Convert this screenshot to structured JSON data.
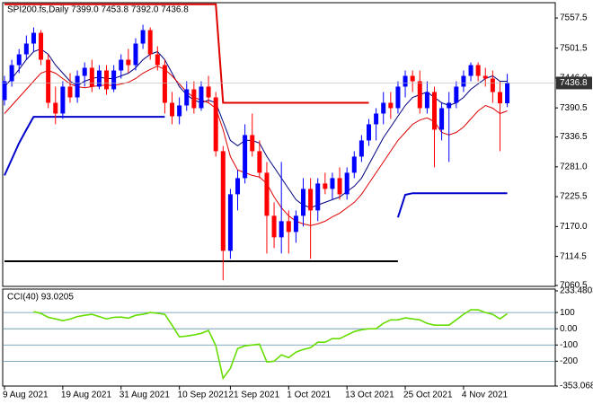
{
  "chart_data": [
    {
      "type": "candlestick",
      "title": "SPI200.fs,Daily  7399.0 7453.8 7392.0 7436.8",
      "categories": [
        "9 Aug 2021",
        null,
        null,
        null,
        null,
        null,
        null,
        null,
        "19 Aug 2021",
        null,
        null,
        null,
        null,
        null,
        null,
        null,
        "31 Aug 2021",
        null,
        null,
        null,
        null,
        null,
        null,
        null,
        "10 Sep 2021",
        null,
        null,
        null,
        null,
        null,
        null,
        "21 Sep 2021",
        null,
        null,
        null,
        null,
        null,
        null,
        null,
        "1 Oct 2021",
        null,
        null,
        null,
        null,
        null,
        null,
        null,
        "13 Oct 2021",
        null,
        null,
        null,
        null,
        null,
        null,
        null,
        "25 Oct 2021",
        null,
        null,
        null,
        null,
        null,
        null,
        null,
        "4 Nov 2021",
        null,
        null,
        null,
        null,
        null,
        null
      ],
      "open": [
        7405,
        7440,
        7470,
        7490,
        7510,
        7530,
        7480,
        7400,
        7380,
        7430,
        7410,
        7450,
        7465,
        7430,
        7460,
        7425,
        7460,
        7480,
        7470,
        7510,
        7535,
        7490,
        7470,
        7400,
        7375,
        7395,
        7425,
        7390,
        7430,
        7410,
        7310,
        7125,
        7230,
        7260,
        7340,
        7310,
        7270,
        7190,
        7150,
        7180,
        7160,
        7190,
        7240,
        7200,
        7250,
        7240,
        7260,
        7230,
        7270,
        7300,
        7330,
        7360,
        7380,
        7400,
        7390,
        7430,
        7450,
        7440,
        7390,
        7420,
        7350,
        7390,
        7400,
        7430,
        7450,
        7470,
        7450,
        7445,
        7420,
        7399
      ],
      "high": [
        7450,
        7480,
        7500,
        7525,
        7540,
        7535,
        7490,
        7430,
        7440,
        7455,
        7460,
        7475,
        7480,
        7470,
        7470,
        7470,
        7490,
        7500,
        7520,
        7545,
        7540,
        7505,
        7480,
        7420,
        7410,
        7440,
        7440,
        7440,
        7450,
        7420,
        7320,
        7240,
        7275,
        7360,
        7380,
        7330,
        7290,
        7215,
        7290,
        7200,
        7200,
        7260,
        7260,
        7260,
        7270,
        7270,
        7280,
        7280,
        7310,
        7340,
        7370,
        7390,
        7420,
        7420,
        7440,
        7460,
        7460,
        7460,
        7440,
        7430,
        7400,
        7420,
        7440,
        7460,
        7475,
        7475,
        7465,
        7460,
        7440,
        7453.8
      ],
      "low": [
        7395,
        7430,
        7455,
        7480,
        7495,
        7470,
        7390,
        7360,
        7370,
        7400,
        7400,
        7430,
        7420,
        7425,
        7415,
        7420,
        7445,
        7455,
        7460,
        7500,
        7480,
        7460,
        7380,
        7360,
        7360,
        7385,
        7380,
        7385,
        7400,
        7300,
        7070,
        7110,
        7200,
        7250,
        7300,
        7260,
        7120,
        7130,
        7120,
        7120,
        7140,
        7170,
        7110,
        7180,
        7230,
        7220,
        7220,
        7220,
        7260,
        7290,
        7320,
        7330,
        7360,
        7370,
        7380,
        7410,
        7420,
        7380,
        7380,
        7280,
        7330,
        7290,
        7390,
        7420,
        7440,
        7440,
        7430,
        7400,
        7310,
        7392
      ],
      "close": [
        7440,
        7470,
        7490,
        7510,
        7530,
        7480,
        7400,
        7380,
        7430,
        7410,
        7450,
        7465,
        7430,
        7460,
        7425,
        7460,
        7480,
        7470,
        7510,
        7535,
        7490,
        7470,
        7400,
        7375,
        7395,
        7425,
        7390,
        7430,
        7410,
        7310,
        7125,
        7230,
        7260,
        7340,
        7310,
        7270,
        7190,
        7150,
        7180,
        7160,
        7190,
        7240,
        7200,
        7250,
        7240,
        7260,
        7230,
        7270,
        7300,
        7330,
        7360,
        7380,
        7400,
        7390,
        7430,
        7450,
        7440,
        7390,
        7420,
        7350,
        7390,
        7400,
        7430,
        7450,
        7470,
        7450,
        7445,
        7420,
        7399,
        7436.8
      ],
      "up_color": "#0000ff",
      "down_color": "#ff0000",
      "overlays": [
        {
          "color": "#000080",
          "values": [
            7430,
            7445,
            7462,
            7480,
            7495,
            7500,
            7490,
            7470,
            7455,
            7440,
            7432,
            7440,
            7445,
            7448,
            7445,
            7445,
            7450,
            7455,
            7465,
            7480,
            7490,
            7495,
            7480,
            7455,
            7430,
            7415,
            7405,
            7400,
            7405,
            7400,
            7365,
            7330,
            7320,
            7330,
            7330,
            7325,
            7300,
            7280,
            7260,
            7240,
            7220,
            7210,
            7205,
            7210,
            7215,
            7220,
            7225,
            7235,
            7245,
            7260,
            7285,
            7310,
            7335,
            7355,
            7375,
            7395,
            7410,
            7415,
            7420,
            7410,
            7400,
            7395,
            7400,
            7410,
            7425,
            7435,
            7445,
            7450,
            7440,
            7440
          ]
        },
        {
          "color": "#e00000",
          "values": [
            7380,
            7395,
            7410,
            7425,
            7440,
            7455,
            7460,
            7455,
            7445,
            7435,
            7430,
            7428,
            7430,
            7432,
            7433,
            7432,
            7435,
            7438,
            7445,
            7455,
            7462,
            7468,
            7462,
            7450,
            7435,
            7420,
            7410,
            7405,
            7400,
            7390,
            7350,
            7300,
            7275,
            7270,
            7265,
            7262,
            7250,
            7225,
            7205,
            7190,
            7180,
            7175,
            7172,
            7175,
            7180,
            7188,
            7195,
            7205,
            7215,
            7230,
            7250,
            7270,
            7290,
            7310,
            7330,
            7345,
            7360,
            7368,
            7372,
            7365,
            7345,
            7340,
            7345,
            7355,
            7370,
            7385,
            7395,
            7390,
            7380,
            7385
          ]
        }
      ],
      "levels": [
        {
          "color": "#e00000",
          "values": [
            7583,
            7583,
            7583,
            7583,
            7583,
            7583,
            7583,
            7583,
            7583,
            7583,
            7583,
            7583,
            7583,
            7583,
            7583,
            7583,
            7583,
            7583,
            7583,
            7583,
            7583,
            7583,
            7583,
            7583,
            7583,
            7583,
            7583,
            7583,
            7583,
            7583,
            7400,
            7400,
            7400,
            7400,
            7400,
            7400,
            7400,
            7400,
            7400,
            7400,
            7400,
            7400,
            7400,
            7400,
            7400,
            7400,
            7400,
            7400,
            7400,
            7400,
            7400,
            null,
            null,
            null,
            null,
            null,
            null,
            null,
            null,
            null,
            null,
            null,
            null,
            null,
            null,
            null,
            null,
            null,
            null,
            null
          ]
        },
        {
          "color": "#0000cc",
          "values": [
            7265,
            7295,
            7325,
            7350,
            7374,
            7374,
            7374,
            7374,
            7374,
            7374,
            7374,
            7374,
            7374,
            7374,
            7374,
            7374,
            7374,
            7374,
            7374,
            7374,
            7374,
            7374,
            7374,
            null,
            null,
            null,
            null,
            null,
            null,
            null,
            null,
            null,
            null,
            null,
            null,
            null,
            null,
            null,
            null,
            null,
            null,
            null,
            null,
            null,
            null,
            null,
            null,
            null,
            null,
            null,
            null,
            null,
            null,
            null,
            7187,
            7229,
            7232,
            7232,
            7232,
            7232,
            7232,
            7232,
            7232,
            7232,
            7232,
            7232,
            7232,
            7232,
            7232,
            7232
          ]
        },
        {
          "color": "#000000",
          "values": [
            7105.5,
            7105.5,
            7105.5,
            7105.5,
            7105.5,
            7105.5,
            7105.5,
            7105.5,
            7105.5,
            7105.5,
            7105.5,
            7105.5,
            7105.5,
            7105.5,
            7105.5,
            7105.5,
            7105.5,
            7105.5,
            7105.5,
            7105.5,
            7105.5,
            7105.5,
            7105.5,
            7105.5,
            7105.5,
            7105.5,
            7105.5,
            7105.5,
            7105.5,
            7105.5,
            7105.5,
            7105.5,
            7105.5,
            7105.5,
            7105.5,
            7105.5,
            7105.5,
            7105.5,
            7105.5,
            7105.5,
            7105.5,
            7105.5,
            7105.5,
            7105.5,
            7105.5,
            7105.5,
            7105.5,
            7105.5,
            7105.5,
            7105.5,
            7105.5,
            7105.5,
            7105.5,
            7105.5,
            7105.5,
            null,
            null,
            null,
            null,
            null,
            null,
            null,
            null,
            null,
            null,
            null,
            null,
            null,
            null,
            null
          ]
        }
      ],
      "ylim": [
        7060.5,
        7584.3
      ],
      "yticks": [
        7557.5,
        7501.5,
        {
          "value": 7446,
          "label": "7446.0"
        },
        7390.5,
        7336.5,
        {
          "value": 7281,
          "label": "7281.0"
        },
        7225.5,
        {
          "value": 7170,
          "label": "7170.0"
        },
        7114.5,
        7060.5
      ]
    },
    {
      "type": "line",
      "title": "CCI(40) 93.0205",
      "color": "#66dd00",
      "values": [
        null,
        null,
        null,
        null,
        105,
        95,
        70,
        61,
        50,
        60,
        75,
        83,
        89,
        75,
        61,
        70,
        72,
        65,
        83,
        89,
        100,
        95,
        89,
        22,
        -50,
        -45,
        -38,
        -28,
        -10,
        -105,
        -305,
        -244,
        -122,
        -105,
        -100,
        -95,
        -205,
        -200,
        -161,
        -178,
        -144,
        -128,
        -117,
        -83,
        -83,
        -61,
        -61,
        -39,
        -17,
        -6,
        0,
        0,
        33,
        55,
        55,
        67,
        61,
        55,
        33,
        22,
        22,
        22,
        55,
        89,
        117,
        117,
        100,
        89,
        61,
        93.0205
      ],
      "ylim": [
        -353.068,
        233.4803
      ],
      "yticks": [
        233.4803,
        100,
        {
          "value": 0,
          "label": "0.00"
        },
        -100,
        -200,
        -353.068
      ],
      "grid": true
    }
  ]
}
